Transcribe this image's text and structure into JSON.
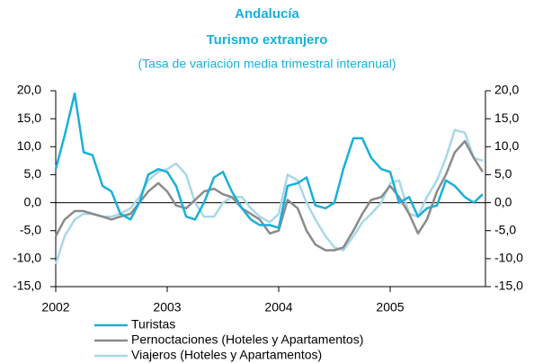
{
  "chart_data": {
    "type": "line",
    "title": "Andalucía",
    "subtitle": "Turismo extranjero",
    "note": "(Tasa de variación media trimestral interanual)",
    "x": [
      2002.0,
      2002.08,
      2002.17,
      2002.25,
      2002.33,
      2002.42,
      2002.5,
      2002.58,
      2002.67,
      2002.75,
      2002.83,
      2002.92,
      2003.0,
      2003.08,
      2003.17,
      2003.25,
      2003.33,
      2003.42,
      2003.5,
      2003.58,
      2003.67,
      2003.75,
      2003.83,
      2003.92,
      2004.0,
      2004.08,
      2004.17,
      2004.25,
      2004.33,
      2004.42,
      2004.5,
      2004.58,
      2004.67,
      2004.75,
      2004.83,
      2004.92,
      2005.0,
      2005.08,
      2005.17,
      2005.25,
      2005.33,
      2005.42,
      2005.5,
      2005.58,
      2005.67,
      2005.75,
      2005.83
    ],
    "series": [
      {
        "name": "Turistas",
        "color": "#1ab0d8",
        "values": [
          6,
          12,
          19.5,
          9,
          8.5,
          3,
          2,
          -2,
          -3,
          0,
          5,
          6,
          5.5,
          3,
          -2.5,
          -3,
          0,
          4.5,
          5.5,
          2,
          -1,
          -3,
          -4,
          -4,
          -4.5,
          3,
          3.5,
          4.5,
          -0.5,
          -1,
          0,
          6,
          11.5,
          11.5,
          8,
          6,
          5.5,
          0,
          1,
          -2.5,
          -1,
          -0.5,
          4,
          3,
          1,
          0,
          1.5
        ]
      },
      {
        "name": "Pernoctaciones (Hoteles y Apartamentos)",
        "color": "#8a8a8a",
        "values": [
          -6,
          -3,
          -1.5,
          -1.5,
          -2,
          -2.5,
          -3,
          -2.5,
          -2,
          0,
          2,
          3.5,
          2,
          -0.5,
          -1,
          0.5,
          2,
          2.5,
          1.5,
          1,
          -1,
          -2,
          -3,
          -5.5,
          -5,
          0.5,
          -1,
          -5,
          -7.5,
          -8.5,
          -8.5,
          -8,
          -5,
          -2,
          0.5,
          1,
          3,
          1,
          -2,
          -5.5,
          -3,
          2,
          5,
          9,
          11,
          8,
          5.5
        ]
      },
      {
        "name": "Viajeros (Hoteles y Apartamentos)",
        "color": "#a8d8e8",
        "values": [
          -11,
          -6,
          -3,
          -2,
          -2,
          -2.5,
          -2.5,
          -2,
          -1,
          1,
          4,
          5.5,
          6,
          7,
          5,
          0,
          -2.5,
          -2.5,
          0,
          1,
          1,
          -1,
          -2.5,
          -3.5,
          -2,
          5,
          4,
          0,
          -3,
          -6,
          -8,
          -8.5,
          -6,
          -3.5,
          -2,
          0,
          3.5,
          4,
          -2,
          -2.5,
          1,
          4,
          8,
          13,
          12.5,
          8,
          7.5
        ]
      }
    ],
    "xlim": [
      2002,
      2005.855
    ],
    "xticks": [
      2002,
      2003,
      2004,
      2005
    ],
    "ylim": [
      -15,
      20
    ],
    "yticks": [
      {
        "value": -15,
        "label": "-15,0"
      },
      {
        "value": -10,
        "label": "-10,0"
      },
      {
        "value": -5,
        "label": "-5,0"
      },
      {
        "value": 0,
        "label": "0,0"
      },
      {
        "value": 5,
        "label": "5,0"
      },
      {
        "value": 10,
        "label": "10,0"
      },
      {
        "value": 15,
        "label": "15,0"
      },
      {
        "value": 20,
        "label": "20,0"
      }
    ],
    "y2lim": [
      -15,
      20
    ],
    "y2ticks": [
      {
        "value": -15,
        "label": "-15,0"
      },
      {
        "value": -10,
        "label": "-10,0"
      },
      {
        "value": -5,
        "label": "-5,0"
      },
      {
        "value": 0,
        "label": "0,0"
      },
      {
        "value": 5,
        "label": "5,0"
      },
      {
        "value": 10,
        "label": "10,0"
      },
      {
        "value": 15,
        "label": "15,0"
      },
      {
        "value": 20,
        "label": "20,0"
      }
    ]
  }
}
